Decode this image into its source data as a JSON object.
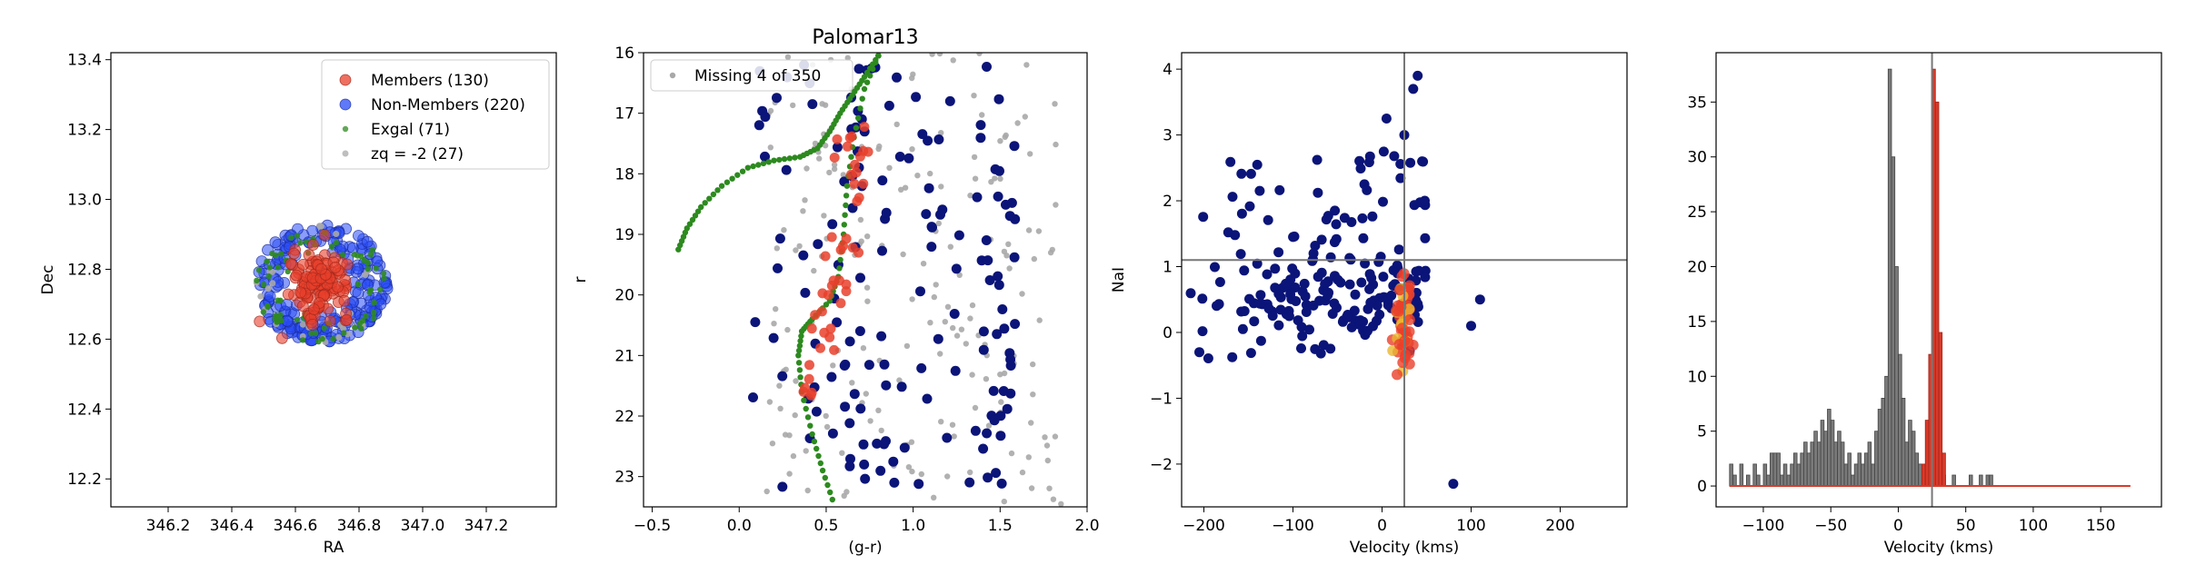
{
  "colors": {
    "member": "#e8402c",
    "nonmember": "#0b1478",
    "nonmember_light": "#2a4cf5",
    "exgal": "#2d8a1f",
    "zq": "#a8a8a8",
    "hist_all": "#7a7a7a",
    "hist_member": "#d93a2a",
    "line": "#777777"
  },
  "chart_data": [
    {
      "type": "scatter",
      "title": "",
      "xlabel": "RA",
      "ylabel": "Dec",
      "xlim": [
        346.02,
        347.42
      ],
      "ylim": [
        12.12,
        13.42
      ],
      "xticks": [
        "346.2",
        "346.4",
        "346.6",
        "346.8",
        "347.0",
        "347.2"
      ],
      "yticks": [
        "12.2",
        "12.4",
        "12.6",
        "12.8",
        "13.0",
        "13.2",
        "13.4"
      ],
      "legend": {
        "placement": "upper right",
        "entries": [
          {
            "label": "Members (130)",
            "kind": "member"
          },
          {
            "label": "Non-Members (220)",
            "kind": "nonmember"
          },
          {
            "label": "Exgal (71)",
            "kind": "exgal"
          },
          {
            "label": "zq = -2 (27)",
            "kind": "zq"
          }
        ]
      },
      "center": [
        346.68,
        12.76
      ],
      "series": [
        {
          "name": "Members (130)",
          "count": 130,
          "spread": [
            0.045,
            0.045
          ]
        },
        {
          "name": "Non-Members (220)",
          "count": 220,
          "spread": [
            0.2,
            0.17
          ]
        },
        {
          "name": "Exgal (71)",
          "count": 71,
          "spread": [
            0.2,
            0.17
          ]
        },
        {
          "name": "zq = -2 (27)",
          "count": 27,
          "spread": [
            0.2,
            0.17
          ]
        }
      ]
    },
    {
      "type": "scatter",
      "title": "Palomar13",
      "xlabel": "(g-r)",
      "ylabel": "r",
      "xlim": [
        -0.55,
        2.0
      ],
      "ylim": [
        23.5,
        16.0
      ],
      "xticks": [
        "-0.5",
        "0.0",
        "0.5",
        "1.0",
        "1.5",
        "2.0"
      ],
      "yticks": [
        "16",
        "17",
        "18",
        "19",
        "20",
        "21",
        "22",
        "23"
      ],
      "legend": {
        "placement": "upper left",
        "entries": [
          {
            "label": "Missing 4 of 350",
            "kind": "zq"
          }
        ]
      },
      "isochrone": [
        [
          -0.35,
          19.25
        ],
        [
          -0.3,
          18.9
        ],
        [
          -0.22,
          18.55
        ],
        [
          -0.1,
          18.2
        ],
        [
          0.05,
          17.9
        ],
        [
          0.2,
          17.78
        ],
        [
          0.35,
          17.72
        ],
        [
          0.45,
          17.58
        ],
        [
          0.52,
          17.3
        ],
        [
          0.58,
          17.0
        ],
        [
          0.65,
          16.7
        ],
        [
          0.72,
          16.4
        ],
        [
          0.8,
          16.05
        ],
        [
          0.8,
          16.05
        ],
        [
          0.72,
          16.6
        ],
        [
          0.66,
          17.4
        ],
        [
          0.62,
          18.2
        ],
        [
          0.6,
          19.0
        ],
        [
          0.57,
          19.7
        ],
        [
          0.52,
          20.1
        ],
        [
          0.42,
          20.4
        ],
        [
          0.36,
          20.6
        ],
        [
          0.34,
          21.0
        ],
        [
          0.36,
          21.6
        ],
        [
          0.42,
          22.3
        ],
        [
          0.48,
          22.9
        ],
        [
          0.55,
          23.5
        ]
      ]
    },
    {
      "type": "scatter",
      "title": "",
      "xlabel": "Velocity (kms)",
      "ylabel": "NaI",
      "xlim": [
        -225,
        275
      ],
      "ylim": [
        -2.65,
        4.25
      ],
      "xticks": [
        "-200",
        "-100",
        "0",
        "100",
        "200"
      ],
      "yticks": [
        "-2",
        "-1",
        "0",
        "1",
        "2",
        "3",
        "4"
      ],
      "vline": 25,
      "hline": 1.1
    },
    {
      "type": "histogram",
      "title": "",
      "xlabel": "Velocity (kms)",
      "ylabel": "",
      "xlim": [
        -135,
        195
      ],
      "ylim": [
        -1.9,
        39.5
      ],
      "xticks": [
        "-100",
        "-50",
        "0",
        "50",
        "100",
        "150"
      ],
      "yticks": [
        "0",
        "5",
        "10",
        "15",
        "20",
        "25",
        "30",
        "35"
      ],
      "vline": 25,
      "bin_width": 2.5,
      "series": [
        {
          "name": "",
          "bin_start": -125,
          "values": [
            2,
            1,
            0,
            2,
            0,
            1,
            0,
            2,
            1,
            0,
            2,
            1,
            3,
            3,
            3,
            1,
            2,
            1,
            2,
            3,
            2,
            3,
            4,
            3,
            4,
            5,
            4,
            6,
            5,
            7,
            6,
            4,
            5,
            4,
            2,
            3,
            1,
            2,
            3,
            2,
            3,
            4,
            2,
            5,
            7,
            8,
            10,
            38,
            30,
            20,
            12,
            8,
            4,
            6,
            5,
            3,
            2,
            1,
            1,
            0,
            2,
            1,
            0,
            1,
            0,
            0,
            1,
            0,
            0,
            0,
            0,
            1,
            0,
            0,
            1,
            0,
            1,
            1
          ]
        },
        {
          "name": "",
          "bin_start": 17.5,
          "values": [
            2,
            6,
            12,
            38,
            35,
            14,
            3
          ]
        }
      ]
    }
  ]
}
